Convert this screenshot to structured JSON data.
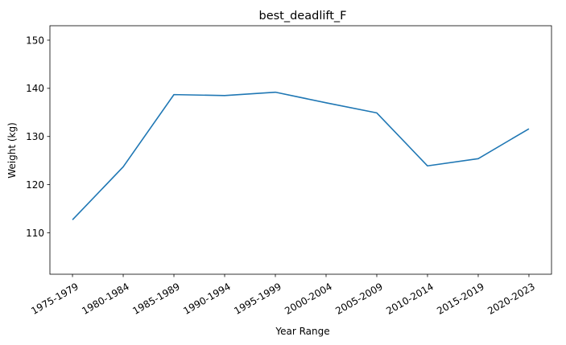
{
  "chart_data": {
    "type": "line",
    "title": "best_deadlift_F",
    "xlabel": "Year Range",
    "ylabel": "Weight (kg)",
    "categories": [
      "1975-1979",
      "1980-1984",
      "1985-1989",
      "1990-1994",
      "1995-1999",
      "2000-2004",
      "2005-2009",
      "2010-2014",
      "2015-2019",
      "2020-2023"
    ],
    "series": [
      {
        "values": [
          112.7,
          123.7,
          138.7,
          138.5,
          139.2,
          137.0,
          134.9,
          123.9,
          125.4,
          131.6
        ],
        "color": "#1f77b4"
      }
    ],
    "ylim": [
      101.4,
      153.0
    ],
    "yticks": [
      110,
      120,
      130,
      140,
      150
    ],
    "grid": false,
    "legend": false,
    "xtick_rotation_deg": 30
  }
}
